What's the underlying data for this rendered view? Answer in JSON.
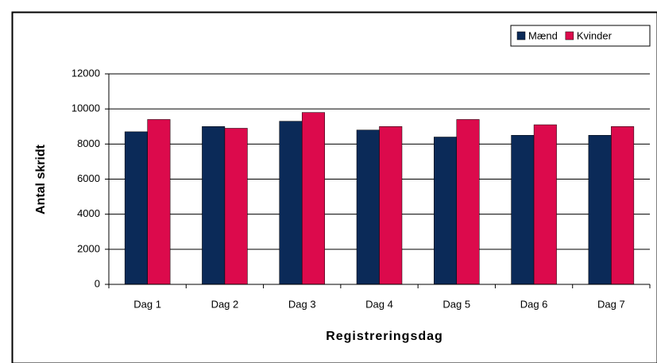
{
  "chart_data": {
    "type": "bar",
    "categories": [
      "Dag 1",
      "Dag 2",
      "Dag 3",
      "Dag 4",
      "Dag 5",
      "Dag 6",
      "Dag 7"
    ],
    "series": [
      {
        "name": "Mænd",
        "color": "#0b2a58",
        "values": [
          8700,
          9000,
          9300,
          8800,
          8400,
          8500,
          8500
        ]
      },
      {
        "name": "Kvinder",
        "color": "#dc0a4c",
        "values": [
          9400,
          8900,
          9800,
          9000,
          9400,
          9100,
          9000
        ]
      }
    ],
    "ylim": [
      0,
      12000
    ],
    "yticks": [
      0,
      2000,
      4000,
      6000,
      8000,
      10000,
      12000
    ],
    "x_label": "Registreringsdag",
    "y_label": "Antal skridt",
    "grid": true,
    "legend": "top-right"
  }
}
